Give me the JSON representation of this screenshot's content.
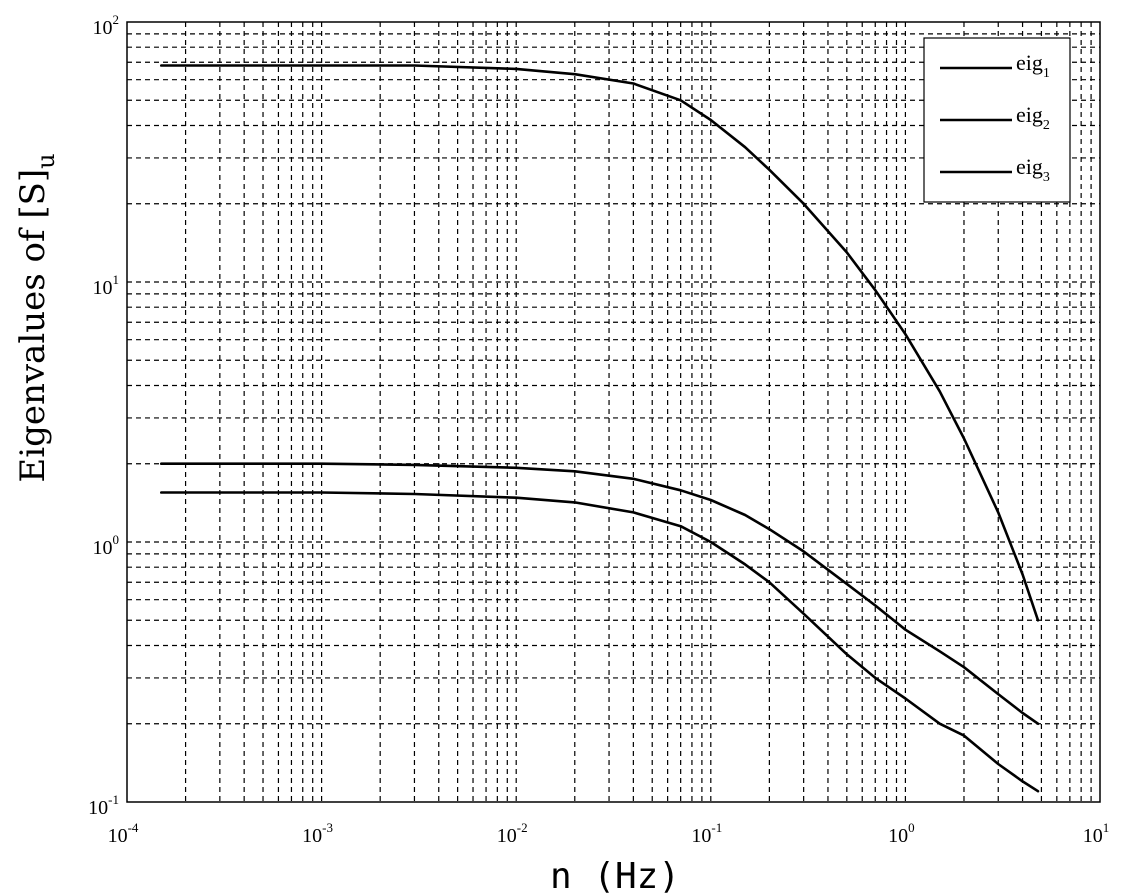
{
  "chart_data": {
    "type": "line",
    "xscale": "log",
    "yscale": "log",
    "xlim": [
      0.0001,
      10
    ],
    "ylim": [
      0.1,
      100
    ],
    "grid": true,
    "legend_placement": "top-right",
    "xlabel": "n (Hz)",
    "ylabel": {
      "main": "Eigenvalues of [S]",
      "sub": "u"
    },
    "xticks": [
      {
        "base": "10",
        "exp": "-4"
      },
      {
        "base": "10",
        "exp": "-3"
      },
      {
        "base": "10",
        "exp": "-2"
      },
      {
        "base": "10",
        "exp": "-1"
      },
      {
        "base": "10",
        "exp": "0"
      },
      {
        "base": "10",
        "exp": "1"
      }
    ],
    "yticks": [
      {
        "base": "10",
        "exp": "-1"
      },
      {
        "base": "10",
        "exp": "0"
      },
      {
        "base": "10",
        "exp": "1"
      },
      {
        "base": "10",
        "exp": "2"
      }
    ],
    "series": [
      {
        "name": "eig",
        "sub": "1",
        "color": "#000000",
        "x": [
          0.00015,
          0.001,
          0.003,
          0.01,
          0.02,
          0.04,
          0.07,
          0.1,
          0.15,
          0.2,
          0.3,
          0.5,
          0.7,
          1.0,
          1.5,
          2.0,
          3.0,
          4.0,
          4.8
        ],
        "y": [
          68,
          68,
          68,
          66,
          63,
          58,
          50,
          42,
          33,
          27,
          20,
          13,
          9.3,
          6.3,
          3.8,
          2.5,
          1.3,
          0.75,
          0.5
        ]
      },
      {
        "name": "eig",
        "sub": "2",
        "color": "#000000",
        "x": [
          0.00015,
          0.001,
          0.003,
          0.01,
          0.02,
          0.04,
          0.07,
          0.1,
          0.15,
          0.2,
          0.3,
          0.5,
          0.7,
          1.0,
          1.5,
          2.0,
          3.0,
          4.0,
          4.8
        ],
        "y": [
          2.0,
          2.0,
          1.98,
          1.93,
          1.87,
          1.75,
          1.58,
          1.45,
          1.27,
          1.12,
          0.92,
          0.69,
          0.57,
          0.46,
          0.38,
          0.33,
          0.26,
          0.22,
          0.2
        ]
      },
      {
        "name": "eig",
        "sub": "3",
        "color": "#000000",
        "x": [
          0.00015,
          0.001,
          0.003,
          0.01,
          0.02,
          0.04,
          0.07,
          0.1,
          0.15,
          0.2,
          0.3,
          0.5,
          0.7,
          1.0,
          1.5,
          2.0,
          3.0,
          4.0,
          4.8
        ],
        "y": [
          1.55,
          1.55,
          1.53,
          1.48,
          1.42,
          1.3,
          1.15,
          1.0,
          0.82,
          0.7,
          0.53,
          0.37,
          0.3,
          0.25,
          0.2,
          0.18,
          0.14,
          0.12,
          0.11
        ]
      }
    ]
  }
}
